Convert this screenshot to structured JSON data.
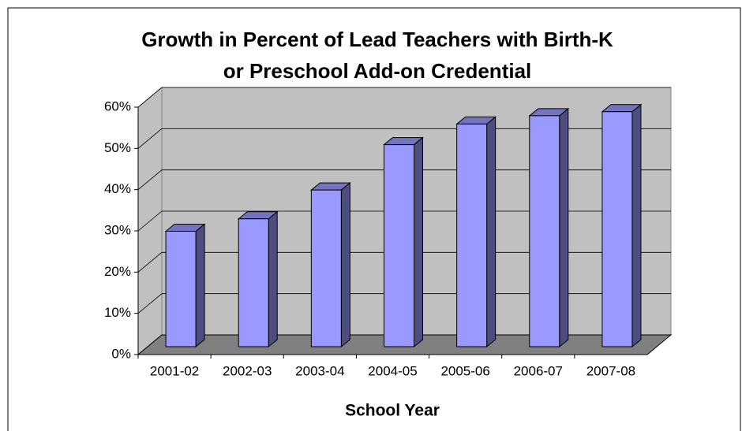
{
  "chart_data": {
    "type": "bar3d",
    "title": [
      "Growth in Percent of Lead Teachers with Birth-K",
      "or Preschool Add-on Credential"
    ],
    "x_label": "School Year",
    "categories": [
      "2001-02",
      "2002-03",
      "2003-04",
      "2004-05",
      "2005-06",
      "2006-07",
      "2007-08"
    ],
    "values": [
      28,
      31,
      38,
      49,
      54,
      56,
      57
    ],
    "color": "#9999ff",
    "ylim": [
      0,
      60
    ],
    "yticks": [
      {
        "value": 0,
        "label": "0%"
      },
      {
        "value": 10,
        "label": "10%"
      },
      {
        "value": 20,
        "label": "20%"
      },
      {
        "value": 30,
        "label": "30%"
      },
      {
        "value": 40,
        "label": "40%"
      },
      {
        "value": 50,
        "label": "50%"
      },
      {
        "value": 60,
        "label": "60%"
      }
    ],
    "grid": true
  }
}
